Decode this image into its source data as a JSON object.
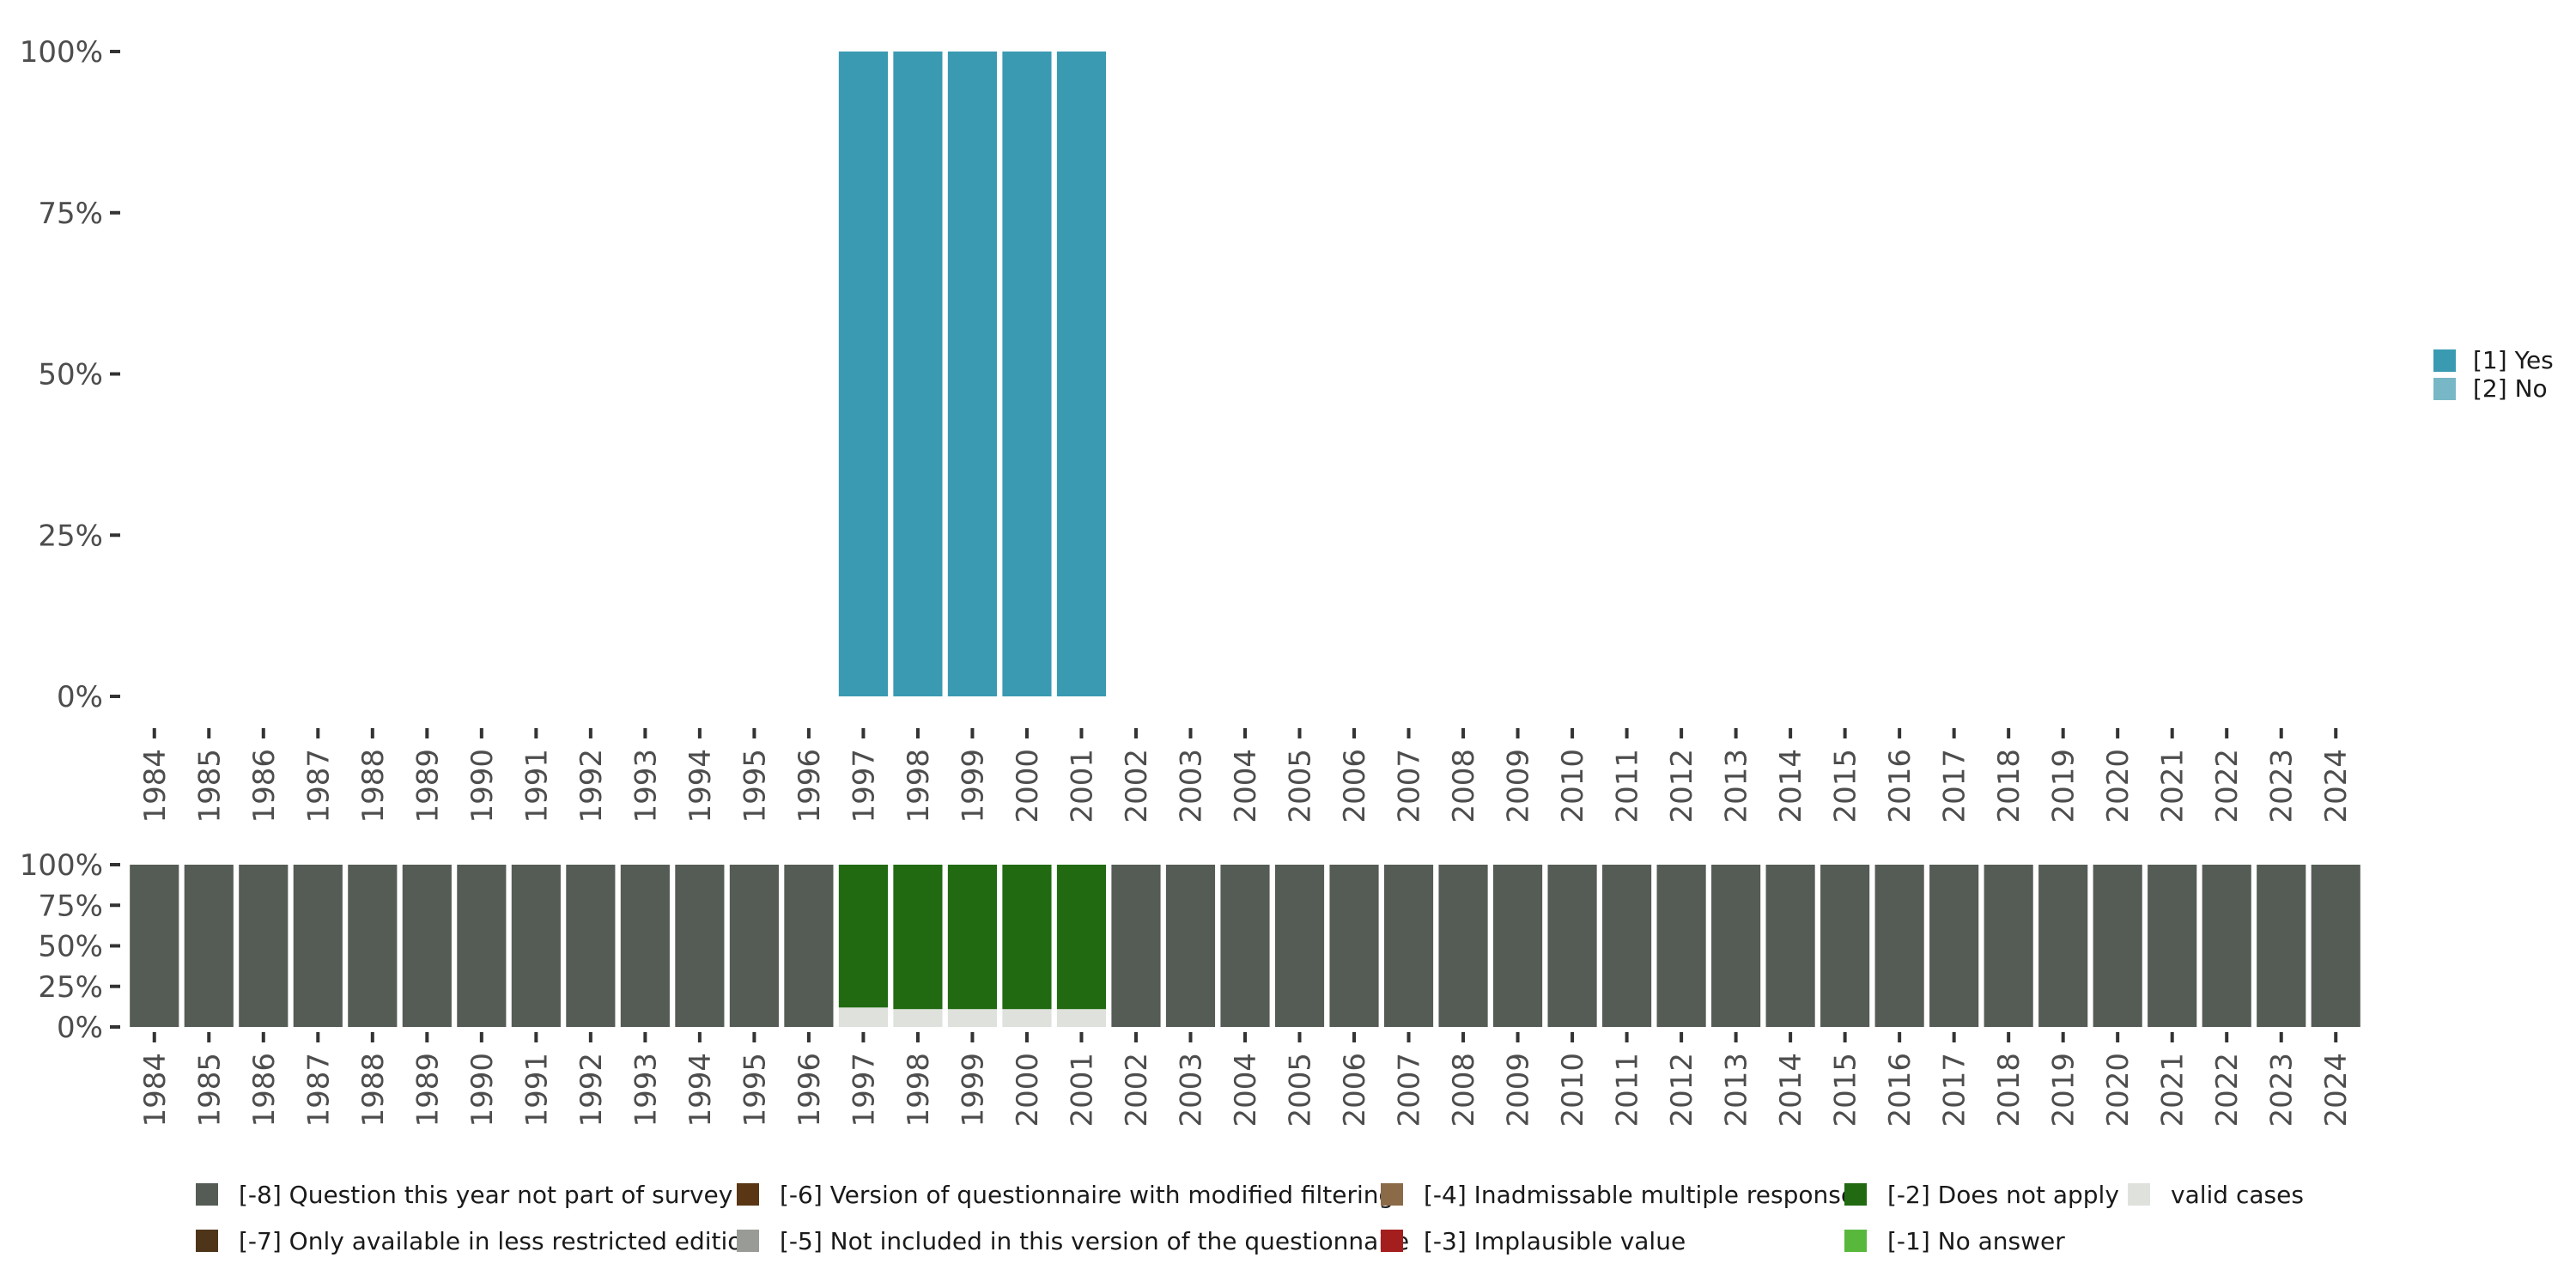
{
  "chart_data": [
    {
      "type": "bar",
      "stacked": true,
      "y_format": "percent",
      "ylim": [
        0,
        100
      ],
      "y_ticks": [
        0,
        25,
        50,
        75,
        100
      ],
      "y_tick_labels": [
        "0%",
        "25%",
        "50%",
        "75%",
        "100%"
      ],
      "categories": [
        "1984",
        "1985",
        "1986",
        "1987",
        "1988",
        "1989",
        "1990",
        "1991",
        "1992",
        "1993",
        "1994",
        "1995",
        "1996",
        "1997",
        "1998",
        "1999",
        "2000",
        "2001",
        "2002",
        "2003",
        "2004",
        "2005",
        "2006",
        "2007",
        "2008",
        "2009",
        "2010",
        "2011",
        "2012",
        "2013",
        "2014",
        "2015",
        "2016",
        "2017",
        "2018",
        "2019",
        "2020",
        "2021",
        "2022",
        "2023",
        "2024"
      ],
      "series": [
        {
          "name": "[1] Yes",
          "color": "#3a9ab2",
          "values": [
            0,
            0,
            0,
            0,
            0,
            0,
            0,
            0,
            0,
            0,
            0,
            0,
            0,
            100,
            100,
            100,
            100,
            100,
            0,
            0,
            0,
            0,
            0,
            0,
            0,
            0,
            0,
            0,
            0,
            0,
            0,
            0,
            0,
            0,
            0,
            0,
            0,
            0,
            0,
            0,
            0
          ]
        },
        {
          "name": "[2] No",
          "color": "#78b7c5",
          "values": [
            0,
            0,
            0,
            0,
            0,
            0,
            0,
            0,
            0,
            0,
            0,
            0,
            0,
            0,
            0,
            0,
            0,
            0,
            0,
            0,
            0,
            0,
            0,
            0,
            0,
            0,
            0,
            0,
            0,
            0,
            0,
            0,
            0,
            0,
            0,
            0,
            0,
            0,
            0,
            0,
            0
          ]
        }
      ],
      "legend": [
        {
          "label": "[1] Yes",
          "color": "#3a9ab2"
        },
        {
          "label": "[2] No",
          "color": "#78b7c5"
        }
      ],
      "legend_position": "right"
    },
    {
      "type": "bar",
      "stacked": true,
      "y_format": "percent",
      "ylim": [
        0,
        100
      ],
      "y_ticks": [
        0,
        25,
        50,
        75,
        100
      ],
      "y_tick_labels": [
        "0%",
        "25%",
        "50%",
        "75%",
        "100%"
      ],
      "categories": [
        "1984",
        "1985",
        "1986",
        "1987",
        "1988",
        "1989",
        "1990",
        "1991",
        "1992",
        "1993",
        "1994",
        "1995",
        "1996",
        "1997",
        "1998",
        "1999",
        "2000",
        "2001",
        "2002",
        "2003",
        "2004",
        "2005",
        "2006",
        "2007",
        "2008",
        "2009",
        "2010",
        "2011",
        "2012",
        "2013",
        "2014",
        "2015",
        "2016",
        "2017",
        "2018",
        "2019",
        "2020",
        "2021",
        "2022",
        "2023",
        "2024"
      ],
      "series": [
        {
          "name": "valid cases",
          "color": "#dfe1dc",
          "values": [
            0,
            0,
            0,
            0,
            0,
            0,
            0,
            0,
            0,
            0,
            0,
            0,
            0,
            12,
            11,
            11,
            11,
            11,
            0,
            0,
            0,
            0,
            0,
            0,
            0,
            0,
            0,
            0,
            0,
            0,
            0,
            0,
            0,
            0,
            0,
            0,
            0,
            0,
            0,
            0,
            0
          ]
        },
        {
          "name": "[-2] Does not apply",
          "color": "#216a12",
          "values": [
            0,
            0,
            0,
            0,
            0,
            0,
            0,
            0,
            0,
            0,
            0,
            0,
            0,
            88,
            89,
            89,
            89,
            89,
            0,
            0,
            0,
            0,
            0,
            0,
            0,
            0,
            0,
            0,
            0,
            0,
            0,
            0,
            0,
            0,
            0,
            0,
            0,
            0,
            0,
            0,
            0
          ]
        },
        {
          "name": "[-8] Question this year not part of survey",
          "color": "#555c55",
          "values": [
            100,
            100,
            100,
            100,
            100,
            100,
            100,
            100,
            100,
            100,
            100,
            100,
            100,
            0,
            0,
            0,
            0,
            0,
            100,
            100,
            100,
            100,
            100,
            100,
            100,
            100,
            100,
            100,
            100,
            100,
            100,
            100,
            100,
            100,
            100,
            100,
            100,
            100,
            100,
            100,
            100
          ]
        }
      ],
      "legend": [
        {
          "label": "[-8] Question this year not part of survey",
          "color": "#555c55"
        },
        {
          "label": "[-7] Only available in less restricted edition",
          "color": "#4e3519"
        },
        {
          "label": "[-6] Version of questionnaire with modified filtering",
          "color": "#5a3614"
        },
        {
          "label": "[-5] Not included in this version of the questionnaire",
          "color": "#999b96"
        },
        {
          "label": "[-4] Inadmissable multiple response",
          "color": "#8b6a48"
        },
        {
          "label": "[-3] Implausible value",
          "color": "#a41e1e"
        },
        {
          "label": "[-2] Does not apply",
          "color": "#216a12"
        },
        {
          "label": "[-1] No answer",
          "color": "#58b83c"
        },
        {
          "label": "valid cases",
          "color": "#dfe1dc"
        }
      ],
      "legend_position": "bottom"
    }
  ]
}
